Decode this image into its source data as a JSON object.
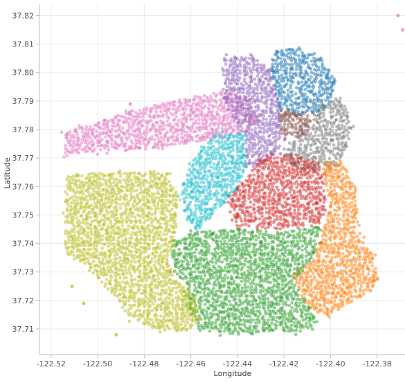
{
  "chart_data": {
    "type": "scatter",
    "title": "",
    "xlabel": "Longitude",
    "ylabel": "Latitude",
    "xlim": [
      -122.525,
      -122.368
    ],
    "ylim": [
      37.701,
      37.824
    ],
    "x_ticks": [
      "-122.52",
      "-122.50",
      "-122.48",
      "-122.46",
      "-122.44",
      "-122.42",
      "-122.40",
      "-122.38"
    ],
    "x_tick_values": [
      -122.52,
      -122.5,
      -122.48,
      -122.46,
      -122.44,
      -122.42,
      -122.4,
      -122.38
    ],
    "y_ticks": [
      "37.82",
      "37.81",
      "37.80",
      "37.79",
      "37.78",
      "37.77",
      "37.76",
      "37.75",
      "37.74",
      "37.73",
      "37.72",
      "37.71"
    ],
    "y_tick_values": [
      37.82,
      37.81,
      37.8,
      37.79,
      37.78,
      37.77,
      37.76,
      37.75,
      37.74,
      37.73,
      37.72,
      37.71
    ],
    "grid": true,
    "legend": "none",
    "point_opacity": 0.5,
    "series": [
      {
        "color": "#e377c2",
        "regions": [
          [
            [
              -122.514,
              37.7715
            ],
            [
              -122.494,
              37.7725
            ],
            [
              -122.474,
              37.7735
            ],
            [
              -122.456,
              37.776
            ],
            [
              -122.436,
              37.779
            ],
            [
              -122.431,
              37.783
            ],
            [
              -122.434,
              37.791
            ],
            [
              -122.446,
              37.7935
            ],
            [
              -122.466,
              37.7905
            ],
            [
              -122.486,
              37.7865
            ],
            [
              -122.506,
              37.781
            ],
            [
              -122.514,
              37.779
            ]
          ]
        ],
        "points": [
          [
            -122.486,
            37.789
          ],
          [
            -122.371,
            37.82
          ],
          [
            -122.369,
            37.815
          ]
        ]
      },
      {
        "color": "#1f77b4",
        "regions": [
          [
            [
              -122.426,
              37.799
            ],
            [
              -122.424,
              37.807
            ],
            [
              -122.416,
              37.809
            ],
            [
              -122.404,
              37.805
            ],
            [
              -122.398,
              37.797
            ],
            [
              -122.399,
              37.79
            ],
            [
              -122.405,
              37.786
            ],
            [
              -122.414,
              37.785
            ],
            [
              -122.422,
              37.787
            ]
          ]
        ],
        "points": []
      },
      {
        "color": "#9467bd",
        "regions": [
          [
            [
              -122.446,
              37.794
            ],
            [
              -122.446,
              37.805
            ],
            [
              -122.434,
              37.806
            ],
            [
              -122.426,
              37.801
            ],
            [
              -122.421,
              37.786
            ],
            [
              -122.421,
              37.774
            ],
            [
              -122.428,
              37.768
            ],
            [
              -122.436,
              37.767
            ],
            [
              -122.437,
              37.779
            ],
            [
              -122.444,
              37.787
            ]
          ]
        ],
        "points": []
      },
      {
        "color": "#7f7f7f",
        "regions": [
          [
            [
              -122.42,
              37.771
            ],
            [
              -122.416,
              37.777
            ],
            [
              -122.404,
              37.788
            ],
            [
              -122.398,
              37.791
            ],
            [
              -122.393,
              37.789
            ],
            [
              -122.391,
              37.779
            ],
            [
              -122.396,
              37.769
            ],
            [
              -122.402,
              37.765
            ],
            [
              -122.414,
              37.766
            ]
          ]
        ],
        "points": []
      },
      {
        "color": "#8c564b",
        "regions": [
          [
            [
              -122.421,
              37.778
            ],
            [
              -122.421,
              37.786
            ],
            [
              -122.408,
              37.785
            ],
            [
              -122.41,
              37.778
            ]
          ]
        ],
        "points": []
      },
      {
        "color": "#17becf",
        "regions": [
          [
            [
              -122.449,
              37.779
            ],
            [
              -122.438,
              37.779
            ],
            [
              -122.436,
              37.766
            ],
            [
              -122.442,
              37.757
            ],
            [
              -122.45,
              37.751
            ],
            [
              -122.456,
              37.745
            ],
            [
              -122.462,
              37.748
            ],
            [
              -122.464,
              37.757
            ],
            [
              -122.46,
              37.769
            ]
          ]
        ],
        "points": []
      },
      {
        "color": "#d62728",
        "regions": [
          [
            [
              -122.436,
              37.763
            ],
            [
              -122.431,
              37.769
            ],
            [
              -122.421,
              37.771
            ],
            [
              -122.405,
              37.769
            ],
            [
              -122.402,
              37.757
            ],
            [
              -122.404,
              37.747
            ],
            [
              -122.423,
              37.745
            ],
            [
              -122.44,
              37.746
            ],
            [
              -122.444,
              37.756
            ]
          ]
        ],
        "points": []
      },
      {
        "color": "#ff7f0e",
        "regions": [
          [
            [
              -122.404,
              37.767
            ],
            [
              -122.395,
              37.769
            ],
            [
              -122.389,
              37.759
            ],
            [
              -122.388,
              37.743
            ],
            [
              -122.381,
              37.734
            ],
            [
              -122.379,
              37.727
            ],
            [
              -122.384,
              37.723
            ],
            [
              -122.394,
              37.718
            ],
            [
              -122.402,
              37.714
            ],
            [
              -122.411,
              37.719
            ],
            [
              -122.417,
              37.729
            ],
            [
              -122.408,
              37.734
            ],
            [
              -122.403,
              37.744
            ],
            [
              -122.4,
              37.754
            ]
          ]
        ],
        "points": []
      },
      {
        "color": "#2ca02c",
        "regions": [
          [
            [
              -122.468,
              37.741
            ],
            [
              -122.458,
              37.744
            ],
            [
              -122.44,
              37.745
            ],
            [
              -122.423,
              37.744
            ],
            [
              -122.404,
              37.746
            ],
            [
              -122.408,
              37.734
            ],
            [
              -122.416,
              37.727
            ],
            [
              -122.411,
              37.719
            ],
            [
              -122.404,
              37.712
            ],
            [
              -122.413,
              37.709
            ],
            [
              -122.437,
              37.708
            ],
            [
              -122.456,
              37.709
            ],
            [
              -122.46,
              37.716
            ],
            [
              -122.462,
              37.725
            ],
            [
              -122.468,
              37.731
            ]
          ]
        ],
        "points": []
      },
      {
        "color": "#bcbd22",
        "regions": [
          [
            [
              -122.514,
              37.764
            ],
            [
              -122.494,
              37.765
            ],
            [
              -122.472,
              37.7655
            ],
            [
              -122.466,
              37.758
            ],
            [
              -122.466,
              37.745
            ],
            [
              -122.47,
              37.734
            ],
            [
              -122.466,
              37.727
            ],
            [
              -122.458,
              37.722
            ],
            [
              -122.456,
              37.713
            ],
            [
              -122.462,
              37.709
            ],
            [
              -122.476,
              37.71
            ],
            [
              -122.486,
              37.714
            ],
            [
              -122.494,
              37.722
            ],
            [
              -122.506,
              37.733
            ],
            [
              -122.514,
              37.736
            ]
          ]
        ],
        "points": [
          [
            -122.511,
            37.725
          ],
          [
            -122.492,
            37.708
          ],
          [
            -122.506,
            37.719
          ]
        ]
      }
    ]
  }
}
